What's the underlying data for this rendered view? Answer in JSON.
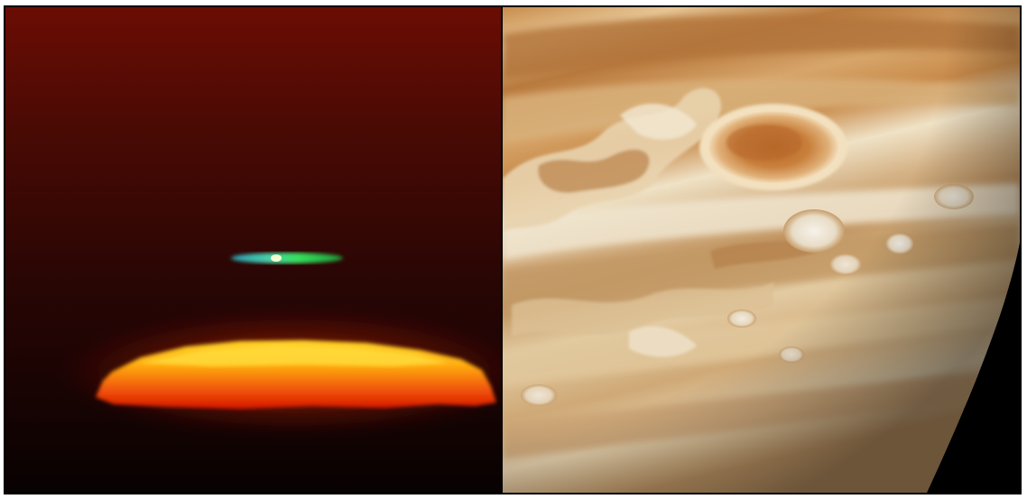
{
  "figure": {
    "panels": [
      {
        "id": "left",
        "subject": "green-flash-sunset",
        "colors": {
          "sky_top": "#6a0d04",
          "sky_mid": "#2a0604",
          "sky_bottom": "#080202",
          "sun_core": "#ffcf1a",
          "sun_edge": "#e81d05",
          "flash_green": "#34e05e",
          "flash_cyan": "#2fb2b8"
        }
      },
      {
        "id": "right",
        "subject": "jupiter-great-red-spot",
        "colors": {
          "space": "#000000",
          "band_light": "#e7d2ad",
          "band_dark": "#b87a3e",
          "red_spot": "#c57a36",
          "white_oval": "#f1ede3"
        }
      }
    ]
  }
}
